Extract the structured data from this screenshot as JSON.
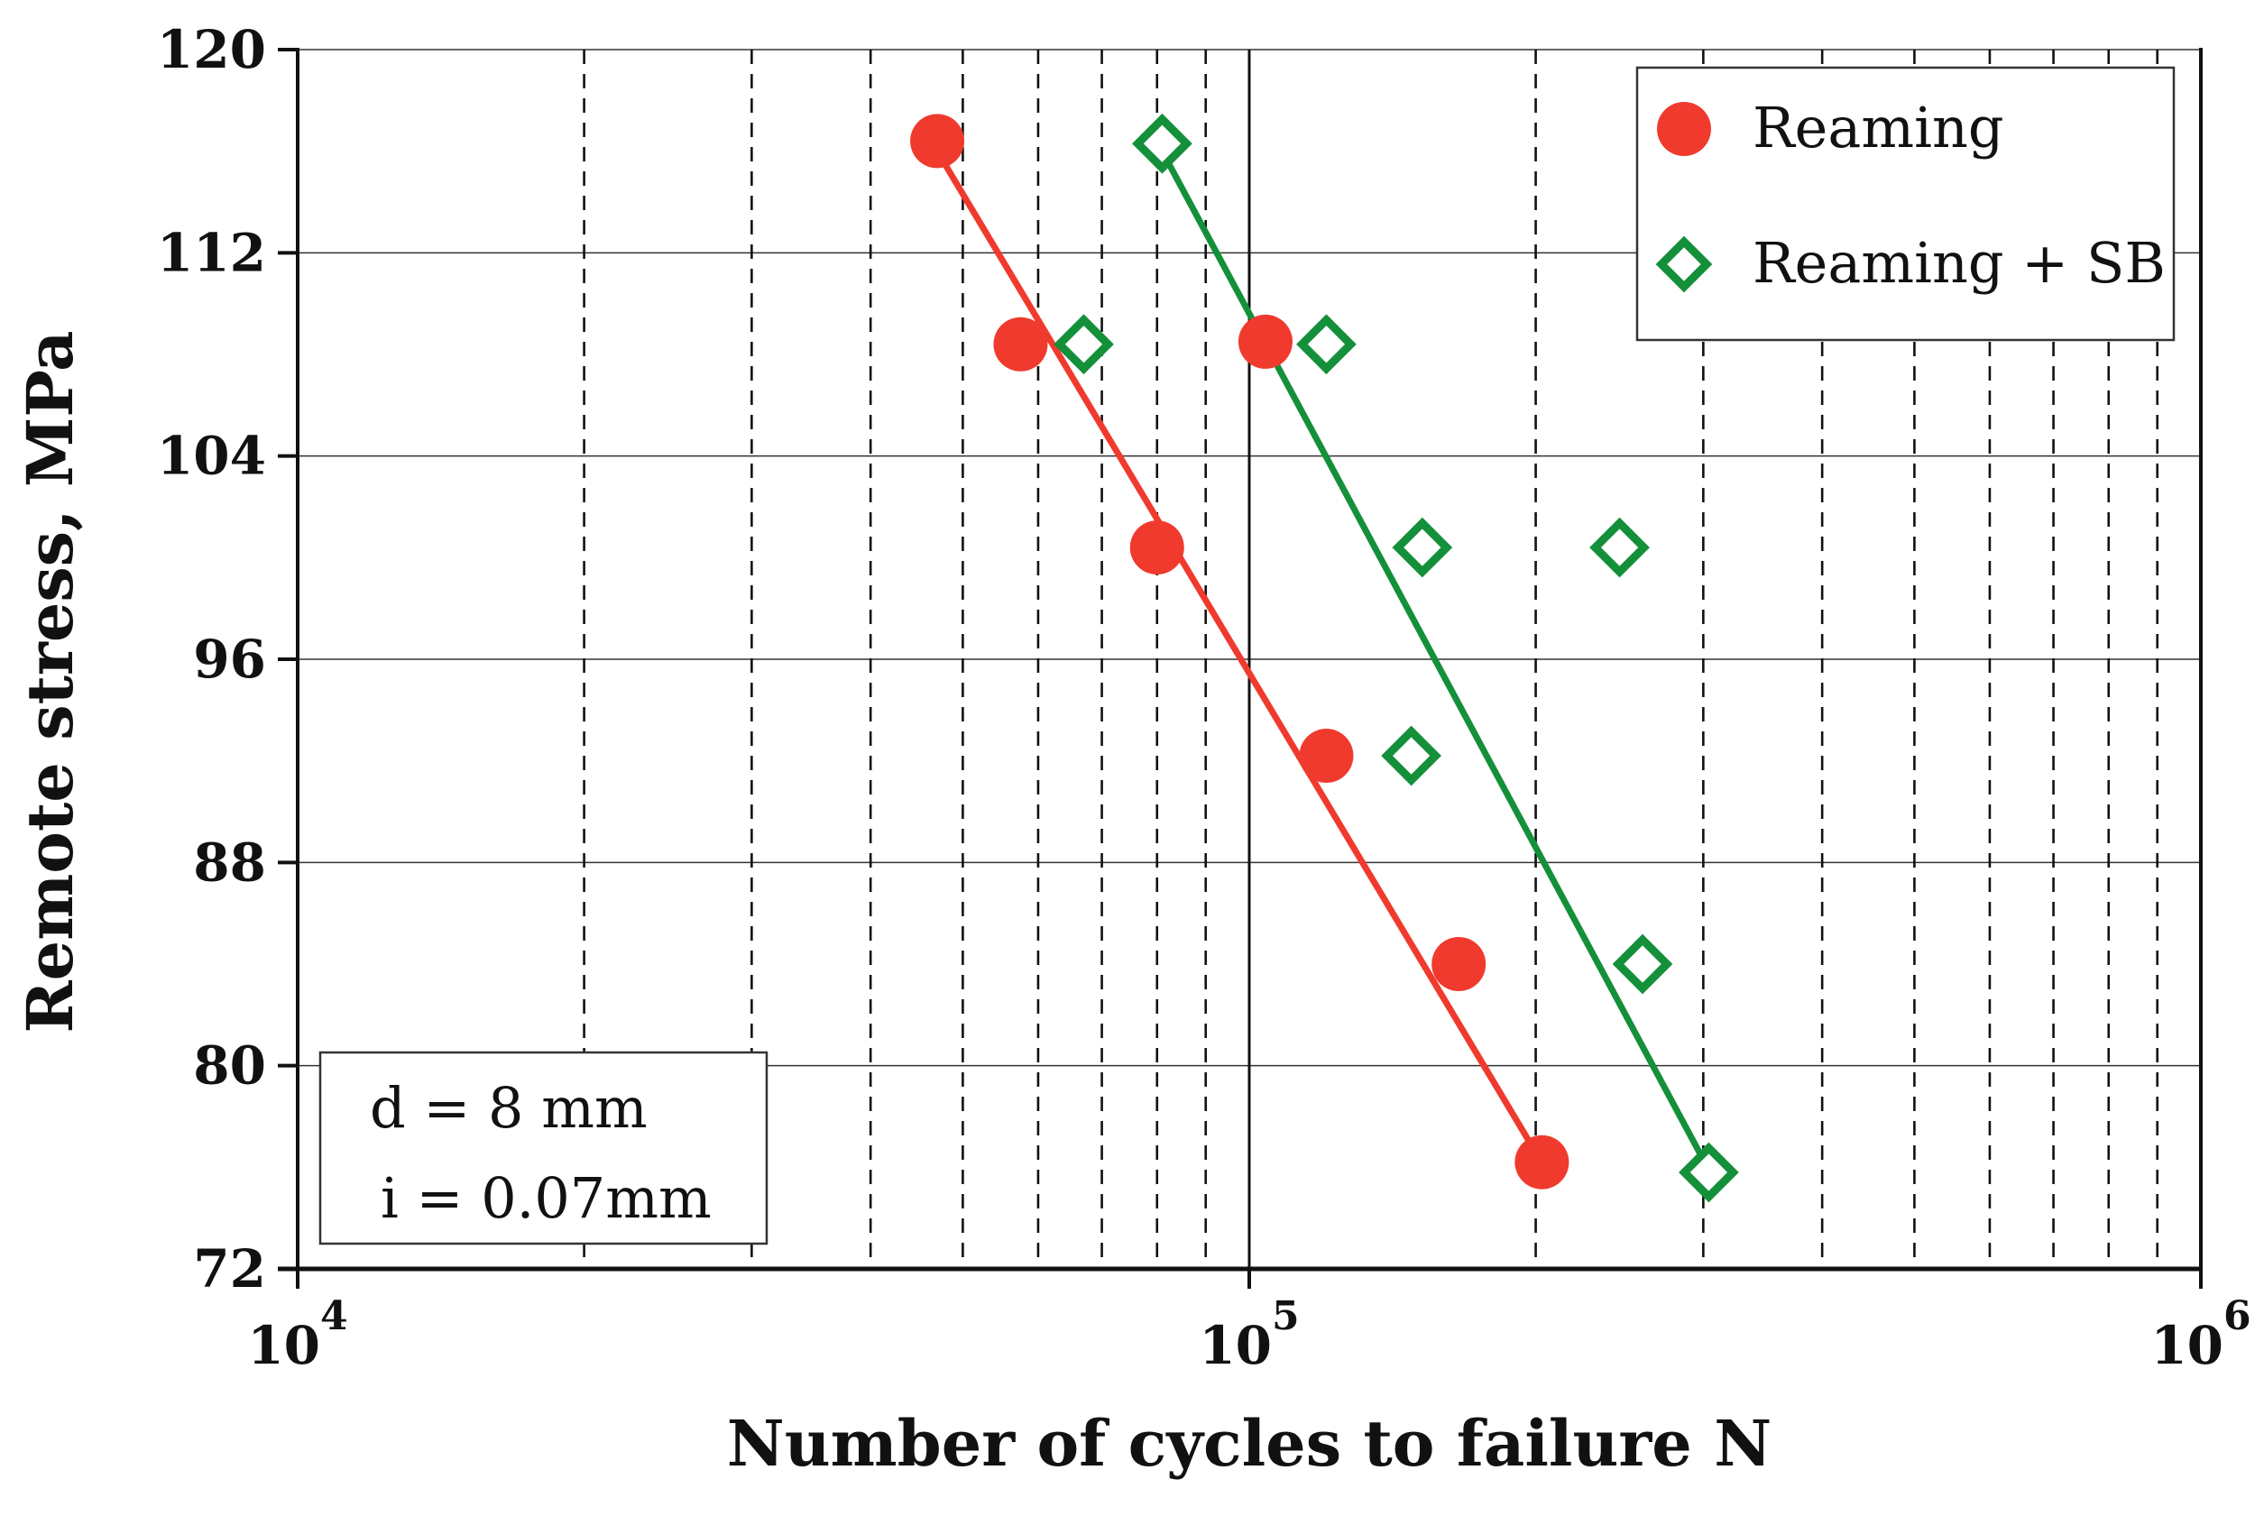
{
  "chart_data": {
    "type": "scatter",
    "title": "",
    "xlabel": "Number of cycles to failure N",
    "ylabel": "Remote stress, MPa",
    "xscale": "log",
    "xlim": [
      10000,
      1000000
    ],
    "ylim": [
      72,
      120
    ],
    "yticks": [
      72,
      80,
      88,
      96,
      104,
      112,
      120
    ],
    "ytick_labels": [
      "72",
      "80",
      "88",
      "96",
      "104",
      "112",
      "120"
    ],
    "xticks": [
      {
        "value": 10000,
        "base": "10",
        "exp": "4"
      },
      {
        "value": 100000,
        "base": "10",
        "exp": "5"
      },
      {
        "value": 1000000,
        "base": "10",
        "exp": "6"
      }
    ],
    "grid": {
      "horizontal": "solid",
      "vertical_minor": "dashed",
      "vertical_major": "solid"
    },
    "legend": {
      "placement": "top-right"
    },
    "annotation_lines": [
      "d = 8  mm",
      "i = 0.07mm"
    ],
    "annotation_placement": "bottom-left",
    "series": [
      {
        "name": "Reaming",
        "marker": "circle",
        "color": "#f03a2e",
        "points": [
          {
            "x": 47000,
            "y": 116.4
          },
          {
            "x": 57500,
            "y": 108.4
          },
          {
            "x": 80000,
            "y": 100.4
          },
          {
            "x": 104000,
            "y": 108.5
          },
          {
            "x": 120500,
            "y": 92.2
          },
          {
            "x": 166000,
            "y": 84.0
          },
          {
            "x": 203000,
            "y": 76.2
          }
        ],
        "fit": {
          "x": [
            47000,
            197000
          ],
          "y": [
            116.0,
            77.0
          ]
        }
      },
      {
        "name": "Reaming + SB",
        "marker": "diamond-open",
        "color": "#14903a",
        "points": [
          {
            "x": 67000,
            "y": 108.4
          },
          {
            "x": 81000,
            "y": 116.3
          },
          {
            "x": 120500,
            "y": 108.4
          },
          {
            "x": 152000,
            "y": 100.4
          },
          {
            "x": 148000,
            "y": 92.2
          },
          {
            "x": 245000,
            "y": 100.4
          },
          {
            "x": 259000,
            "y": 84.0
          },
          {
            "x": 304000,
            "y": 75.8
          }
        ],
        "fit": {
          "x": [
            81000,
            300000
          ],
          "y": [
            116.0,
            76.3
          ]
        }
      }
    ]
  }
}
